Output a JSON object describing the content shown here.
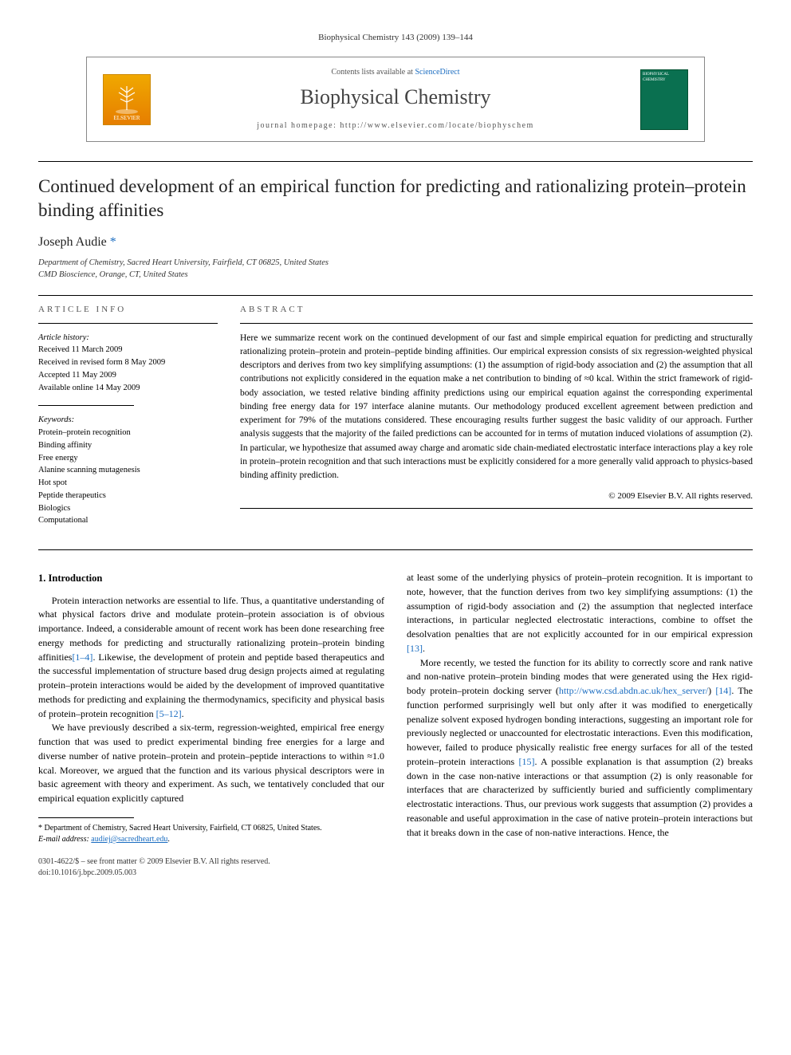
{
  "header": {
    "citation": "Biophysical Chemistry 143 (2009) 139–144"
  },
  "contents_box": {
    "availability_prefix": "Contents lists available at ",
    "availability_link": "ScienceDirect",
    "journal_name": "Biophysical Chemistry",
    "homepage_prefix": "journal homepage: ",
    "homepage_url": "http://www.elsevier.com/locate/biophyschem",
    "publisher_logo_text": "ELSEVIER",
    "cover_text": "BIOPHYSICAL CHEMISTRY"
  },
  "article": {
    "title": "Continued development of an empirical function for predicting and rationalizing protein–protein binding affinities",
    "author": "Joseph Audie",
    "author_marker": "*",
    "affiliations": [
      "Department of Chemistry, Sacred Heart University, Fairfield, CT 06825, United States",
      "CMD Bioscience, Orange, CT, United States"
    ]
  },
  "article_info": {
    "heading": "ARTICLE INFO",
    "history_title": "Article history:",
    "history": [
      "Received 11 March 2009",
      "Received in revised form 8 May 2009",
      "Accepted 11 May 2009",
      "Available online 14 May 2009"
    ],
    "keywords_title": "Keywords:",
    "keywords": [
      "Protein–protein recognition",
      "Binding affinity",
      "Free energy",
      "Alanine scanning mutagenesis",
      "Hot spot",
      "Peptide therapeutics",
      "Biologics",
      "Computational"
    ]
  },
  "abstract": {
    "heading": "ABSTRACT",
    "text": "Here we summarize recent work on the continued development of our fast and simple empirical equation for predicting and structurally rationalizing protein–protein and protein–peptide binding affinities. Our empirical expression consists of six regression-weighted physical descriptors and derives from two key simplifying assumptions: (1) the assumption of rigid-body association and (2) the assumption that all contributions not explicitly considered in the equation make a net contribution to binding of ≈0 kcal. Within the strict framework of rigid-body association, we tested relative binding affinity predictions using our empirical equation against the corresponding experimental binding free energy data for 197 interface alanine mutants. Our methodology produced excellent agreement between prediction and experiment for 79% of the mutations considered. These encouraging results further suggest the basic validity of our approach. Further analysis suggests that the majority of the failed predictions can be accounted for in terms of mutation induced violations of assumption (2). In particular, we hypothesize that assumed away charge and aromatic side chain-mediated electrostatic interface interactions play a key role in protein–protein recognition and that such interactions must be explicitly considered for a more generally valid approach to physics-based binding affinity prediction.",
    "copyright": "© 2009 Elsevier B.V. All rights reserved."
  },
  "body": {
    "intro_heading": "1. Introduction",
    "left_paragraphs": [
      "Protein interaction networks are essential to life. Thus, a quantitative understanding of what physical factors drive and modulate protein–protein association is of obvious importance. Indeed, a considerable amount of recent work has been done researching free energy methods for predicting and structurally rationalizing protein–protein binding affinities[1–4]. Likewise, the development of protein and peptide based therapeutics and the successful implementation of structure based drug design projects aimed at regulating protein–protein interactions would be aided by the development of improved quantitative methods for predicting and explaining the thermodynamics, specificity and physical basis of protein–protein recognition [5–12].",
      "We have previously described a six-term, regression-weighted, empirical free energy function that was used to predict experimental binding free energies for a large and diverse number of native protein–protein and protein–peptide interactions to within ≈1.0 kcal. Moreover, we argued that the function and its various physical descriptors were in basic agreement with theory and experiment. As such, we tentatively concluded that our empirical equation explicitly captured"
    ],
    "right_paragraphs": [
      "at least some of the underlying physics of protein–protein recognition. It is important to note, however, that the function derives from two key simplifying assumptions: (1) the assumption of rigid-body association and (2) the assumption that neglected interface interactions, in particular neglected electrostatic interactions, combine to offset the desolvation penalties that are not explicitly accounted for in our empirical expression [13].",
      "More recently, we tested the function for its ability to correctly score and rank native and non-native protein–protein binding modes that were generated using the Hex rigid-body protein–protein docking server (http://www.csd.abdn.ac.uk/hex_server/) [14]. The function performed surprisingly well but only after it was modified to energetically penalize solvent exposed hydrogen bonding interactions, suggesting an important role for previously neglected or unaccounted for electrostatic interactions. Even this modification, however, failed to produce physically realistic free energy surfaces for all of the tested protein–protein interactions [15]. A possible explanation is that assumption (2) breaks down in the case non-native interactions or that assumption (2) is only reasonable for interfaces that are characterized by sufficiently buried and sufficiently complimentary electrostatic interactions. Thus, our previous work suggests that assumption (2) provides a reasonable and useful approximation in the case of native protein–protein interactions but that it breaks down in the case of non-native interactions. Hence, the"
    ],
    "ref_links": {
      "r1": "[1–4]",
      "r2": "[5–12]",
      "r3": "[13]",
      "r4": "[14]",
      "r5": "[15]"
    },
    "hex_url": "http://www.csd.abdn.ac.uk/hex_server/"
  },
  "footnote": {
    "text": "* Department of Chemistry, Sacred Heart University, Fairfield, CT 06825, United States.",
    "email_label": "E-mail address:",
    "email": "audiej@sacredheart.edu"
  },
  "footer": {
    "line1": "0301-4622/$ – see front matter © 2009 Elsevier B.V. All rights reserved.",
    "line2": "doi:10.1016/j.bpc.2009.05.003"
  },
  "colors": {
    "link": "#1b6dc1",
    "text": "#000000",
    "muted": "#555555"
  }
}
